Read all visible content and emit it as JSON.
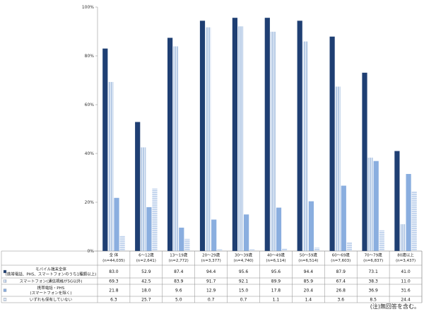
{
  "chart_data": {
    "type": "bar",
    "categories": [
      [
        "全 体",
        "(n=44,035)"
      ],
      [
        "6～12歳",
        "(n=2,641)"
      ],
      [
        "13～19歳",
        "(n=2,772)"
      ],
      [
        "20～29歳",
        "(n=3,377)"
      ],
      [
        "30～39歳",
        "(n=4,740)"
      ],
      [
        "40～49歳",
        "(n=6,114)"
      ],
      [
        "50～59歳",
        "(n=6,514)"
      ],
      [
        "60～69歳",
        "(n=7,603)"
      ],
      [
        "70～79歳",
        "(n=6,837)"
      ],
      [
        "80歳以上",
        "(n=3,437)"
      ]
    ],
    "series": [
      {
        "name": [
          "モバイル端末全体",
          "(携帯電話、PHS、スマートフォンのうち1種類以上)"
        ],
        "color": "#1f3f73",
        "style": "solid",
        "values": [
          83.0,
          52.9,
          87.4,
          94.4,
          95.6,
          95.6,
          94.4,
          87.9,
          73.1,
          41.0
        ],
        "labels": [
          "83.0",
          "52.9",
          "87.4",
          "94.4",
          "95.6",
          "95.6",
          "94.4",
          "87.9",
          "73.1",
          "41.0"
        ]
      },
      {
        "name": [
          "スマートフォン(通信規格が5G以外)"
        ],
        "color": "#b7cbe6",
        "style": "vstripe",
        "values": [
          69.3,
          42.5,
          83.9,
          91.7,
          92.1,
          89.9,
          85.9,
          67.4,
          38.3,
          11.0
        ],
        "labels": [
          "69.3",
          "42.5",
          "83.9",
          "91.7",
          "92.1",
          "89.9",
          "85.9",
          "67.4",
          "38.3",
          "11.0"
        ]
      },
      {
        "name": [
          "携帯電話・PHS",
          "(スマートフォンを除く)"
        ],
        "color": "#8aaedf",
        "style": "solid",
        "values": [
          21.8,
          18.0,
          9.6,
          12.9,
          15.0,
          17.8,
          20.4,
          26.8,
          36.9,
          31.6
        ],
        "labels": [
          "21.8",
          "18.0",
          "9.6",
          "12.9",
          "15.0",
          "17.8",
          "20.4",
          "26.8",
          "36.9",
          "31.6"
        ]
      },
      {
        "name": [
          "いずれも保有していない"
        ],
        "color": "#c5d6ee",
        "style": "hstripe",
        "values": [
          6.3,
          25.7,
          5.0,
          0.7,
          0.7,
          1.1,
          1.4,
          3.6,
          8.5,
          24.4
        ],
        "labels": [
          "6.3",
          "25.7",
          "5.0",
          "0.7",
          "0.7",
          "1.1",
          "1.4",
          "3.6",
          "8.5",
          "24.4"
        ]
      }
    ],
    "ylim": [
      0,
      100
    ],
    "yticks": [
      "0%",
      "20%",
      "40%",
      "60%",
      "80%",
      "100%"
    ],
    "grid": false
  },
  "footnote": "(注)無回答を含む。"
}
